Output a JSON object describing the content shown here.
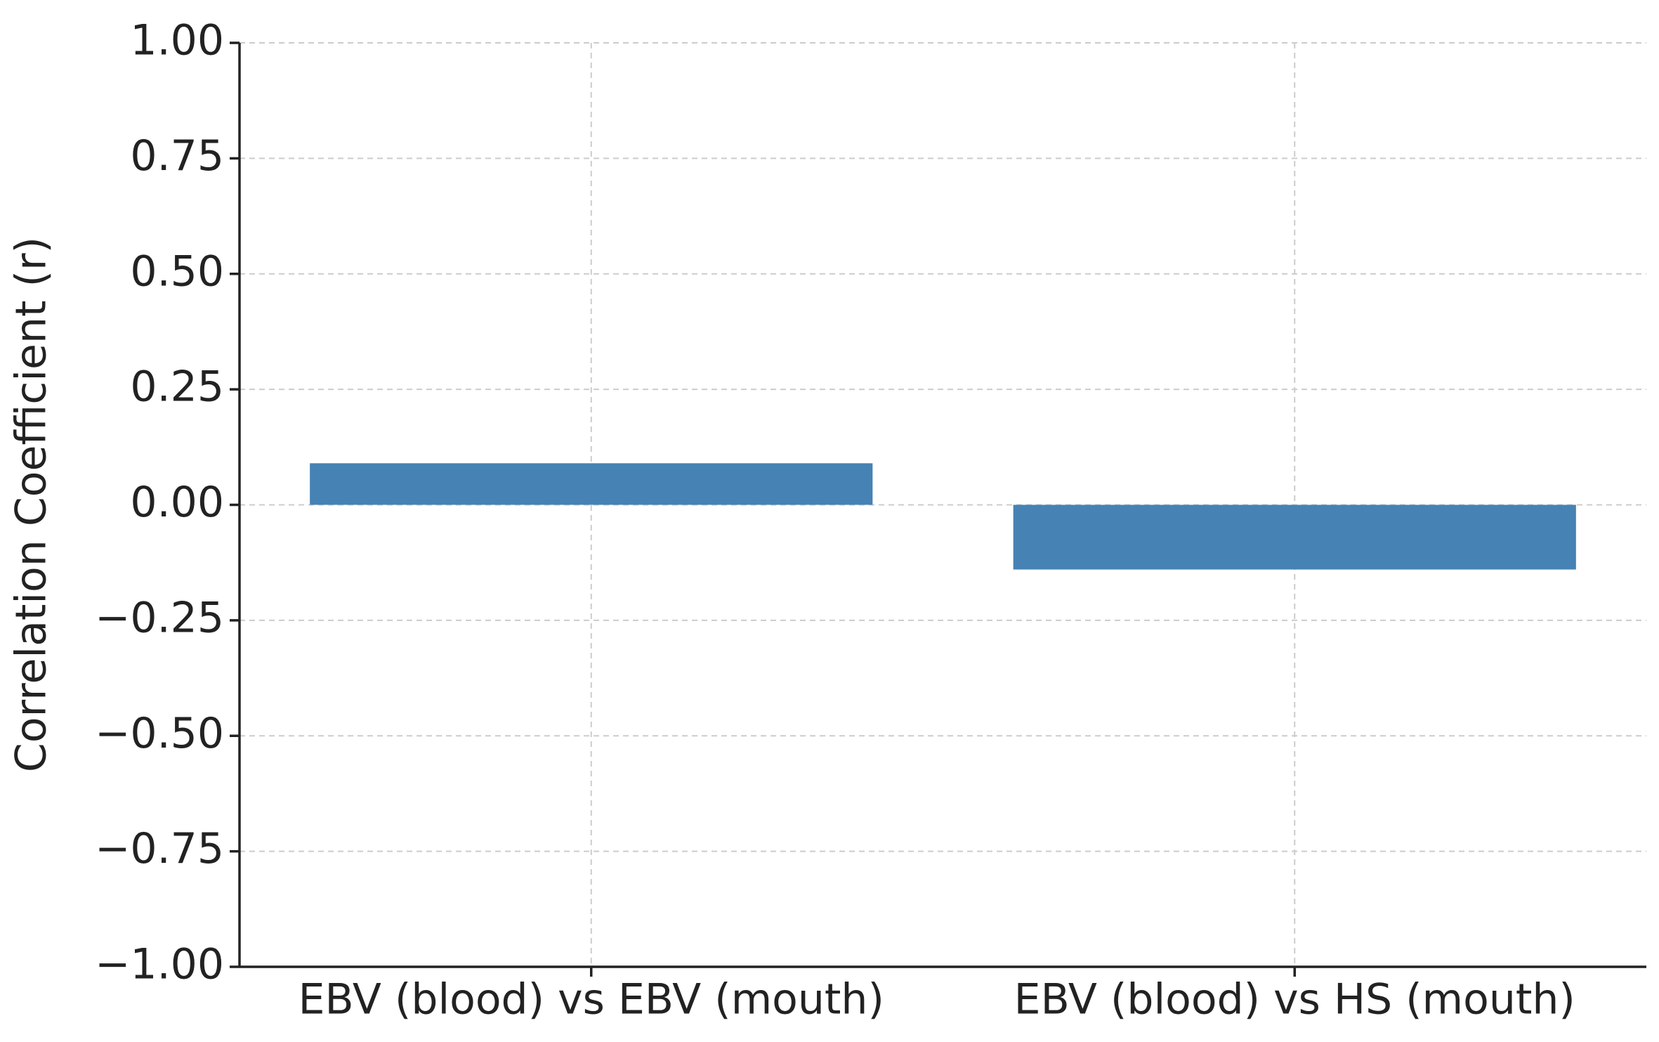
{
  "chart_data": {
    "type": "bar",
    "y_label": "Correlation Coefficient (r)",
    "categories": [
      "EBV (blood) vs EBV (mouth)",
      "EBV (blood) vs HS (mouth)"
    ],
    "values": [
      0.09,
      -0.14
    ],
    "color": "#4682b4",
    "ylim": [
      -1,
      1
    ],
    "yticks": [
      {
        "value": -1,
        "label": "−1.00"
      },
      {
        "value": -0.75,
        "label": "−0.75"
      },
      {
        "value": -0.5,
        "label": "−0.50"
      },
      {
        "value": -0.25,
        "label": "−0.25"
      },
      {
        "value": 0,
        "label": "0.00"
      },
      {
        "value": 0.25,
        "label": "0.25"
      },
      {
        "value": 0.5,
        "label": "0.50"
      },
      {
        "value": 0.75,
        "label": "0.75"
      },
      {
        "value": 1,
        "label": "1.00"
      }
    ],
    "grid": true
  }
}
